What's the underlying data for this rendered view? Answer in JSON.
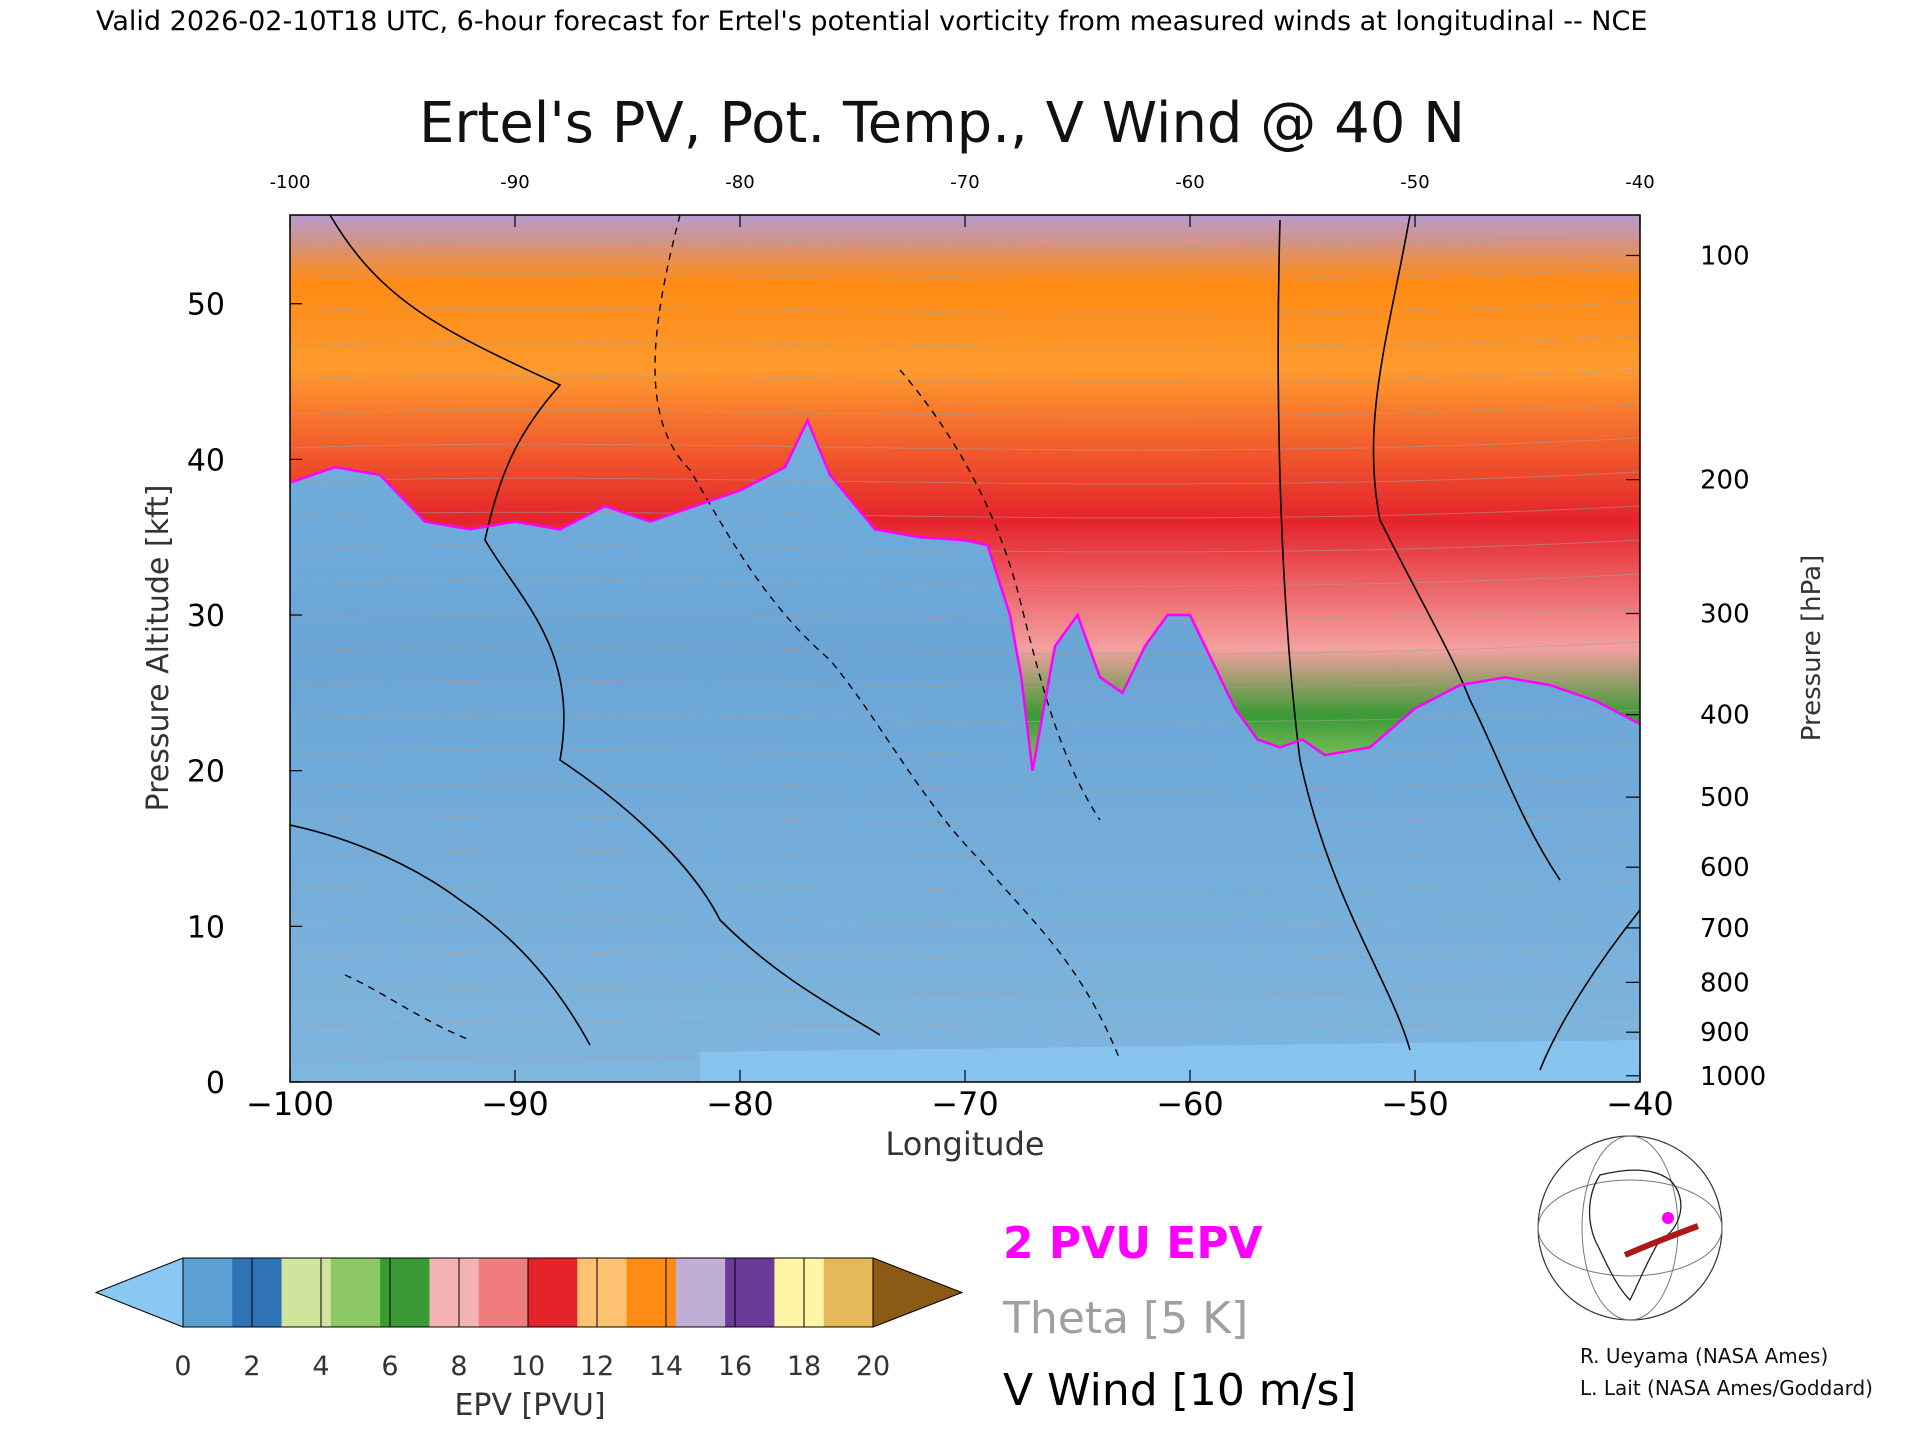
{
  "header": {
    "valid_line": "Valid 2026-02-10T18 UTC, 6-hour forecast for Ertel's potential vorticity from measured winds at longitudinal -- NCE"
  },
  "colors": {
    "pv_line": "#ff00ff",
    "theta": "#a0a0a0",
    "wind": "#000000"
  },
  "chart_data": {
    "type": "heatmap",
    "title": "Ertel's PV, Pot. Temp., V Wind @ 40 N",
    "xlabel": "Longitude",
    "ylabel": "Pressure Altitude [kft]",
    "y2label": "Pressure [hPa]",
    "xlim": [
      -100,
      -40
    ],
    "ylim": [
      0,
      55.7
    ],
    "x_ticks": [
      "-100",
      "-90",
      "-80",
      "-70",
      "-60",
      "-50",
      "-40"
    ],
    "x_ticks_bottom": [
      "−100",
      "−90",
      "−80",
      "−70",
      "−60",
      "−50",
      "−40"
    ],
    "y_ticks": [
      0,
      10,
      20,
      30,
      40,
      50
    ],
    "pressure_ticks": [
      {
        "label": "100",
        "kft": 53.1
      },
      {
        "label": "200",
        "kft": 38.7
      },
      {
        "label": "300",
        "kft": 30.1
      },
      {
        "label": "400",
        "kft": 23.6
      },
      {
        "label": "500",
        "kft": 18.3
      },
      {
        "label": "600",
        "kft": 13.8
      },
      {
        "label": "700",
        "kft": 9.9
      },
      {
        "label": "800",
        "kft": 6.4
      },
      {
        "label": "900",
        "kft": 3.2
      },
      {
        "label": "1000",
        "kft": 0.4
      }
    ],
    "tropopause_2pvu": {
      "lon": [
        -100,
        -98,
        -96,
        -94,
        -92,
        -90,
        -88,
        -86,
        -84,
        -82,
        -80,
        -78,
        -77,
        -76,
        -74,
        -72,
        -70,
        -69,
        -68,
        -67.5,
        -67,
        -66.5,
        -66,
        -65,
        -64,
        -63,
        -62,
        -61,
        -60,
        -59,
        -58,
        -57,
        -56,
        -55,
        -54,
        -52,
        -50,
        -48,
        -46,
        -44,
        -42,
        -40
      ],
      "kft": [
        38.5,
        39.5,
        39,
        36,
        35.5,
        36,
        35.5,
        37,
        36,
        37,
        38,
        39.5,
        42.5,
        39,
        35.5,
        35,
        34.8,
        34.5,
        30,
        26,
        20,
        24,
        28,
        30,
        26,
        25,
        28,
        30,
        30,
        27,
        24,
        22,
        21.5,
        22,
        21,
        21.5,
        24,
        25.5,
        26,
        25.5,
        24.5,
        23
      ]
    },
    "colorbar": {
      "label": "EPV [PVU]",
      "ticks": [
        "0",
        "2",
        "4",
        "6",
        "8",
        "10",
        "12",
        "14",
        "16",
        "18",
        "20"
      ],
      "colors": [
        "#5c9fd2",
        "#2e73b5",
        "#cfe59e",
        "#8cc866",
        "#3a9a35",
        "#f4b3b3",
        "#f07d7d",
        "#e5232b",
        "#ffc272",
        "#ff8a14",
        "#c0aed5",
        "#6b3b99",
        "#fff5a5",
        "#e5b85a"
      ],
      "under_color": "#88c8f2",
      "over_color": "#8b5a14"
    }
  },
  "legend": {
    "pv": "2 PVU EPV",
    "theta": "Theta [5 K]",
    "wind": "V Wind [10 m/s]"
  },
  "credits": {
    "line1": "R. Ueyama (NASA Ames)",
    "line2": "L. Lait (NASA Ames/Goddard)"
  }
}
